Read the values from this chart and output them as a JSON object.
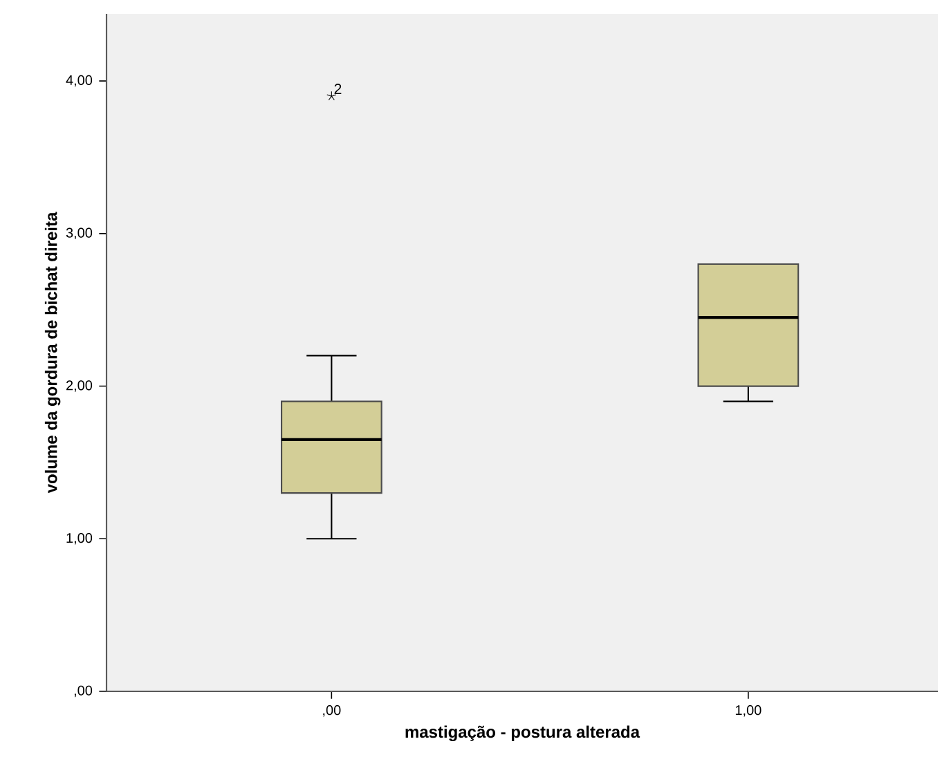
{
  "chart_data": {
    "type": "box",
    "xlabel": "mastigação - postura alterada",
    "ylabel": "volume da gordura de bichat direita",
    "categories": [
      ",00",
      "1,00"
    ],
    "boxes": [
      {
        "low": 1.0,
        "q1": 1.3,
        "median": 1.65,
        "q3": 1.9,
        "high": 2.2,
        "outliers": [
          3.9
        ]
      },
      {
        "low": 1.9,
        "q1": 2.0,
        "median": 2.45,
        "q3": 2.8,
        "high": 2.8
      }
    ],
    "color": "#d3ce97",
    "marker": "star",
    "grid": false,
    "ylim": [
      0,
      4.44
    ],
    "yticks": [
      {
        "value": 0,
        "label": ",00"
      },
      {
        "value": 1,
        "label": "1,00"
      },
      {
        "value": 2,
        "label": "2,00"
      },
      {
        "value": 3,
        "label": "3,00"
      },
      {
        "value": 4,
        "label": "4,00"
      }
    ],
    "annotations": [
      "2"
    ]
  }
}
